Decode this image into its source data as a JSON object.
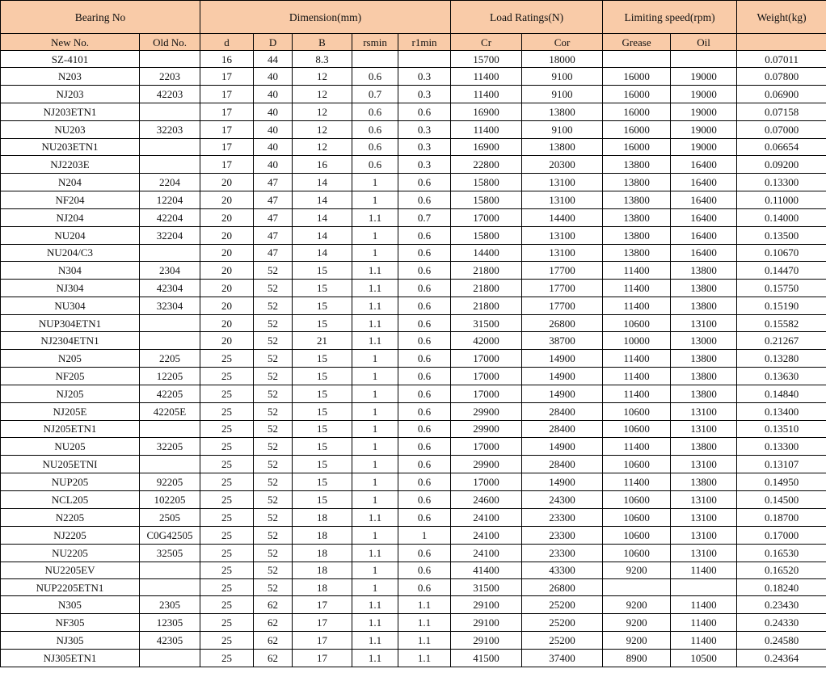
{
  "header": {
    "groups": [
      "Bearing No",
      "Dimension(mm)",
      "Load Ratings(N)",
      "Limiting speed(rpm)",
      "Weight(kg)"
    ],
    "columns": [
      "New No.",
      "Old No.",
      "d",
      "D",
      "B",
      "rsmin",
      "r1min",
      "Cr",
      "Cor",
      "Grease",
      "Oil",
      ""
    ]
  },
  "colors": {
    "header_bg": "#F9CBA8",
    "border": "#000000"
  },
  "rows": [
    [
      "SZ-4101",
      "",
      "16",
      "44",
      "8.3",
      "",
      "",
      "15700",
      "18000",
      "",
      "",
      "0.07011"
    ],
    [
      "N203",
      "2203",
      "17",
      "40",
      "12",
      "0.6",
      "0.3",
      "11400",
      "9100",
      "16000",
      "19000",
      "0.07800"
    ],
    [
      "NJ203",
      "42203",
      "17",
      "40",
      "12",
      "0.7",
      "0.3",
      "11400",
      "9100",
      "16000",
      "19000",
      "0.06900"
    ],
    [
      "NJ203ETN1",
      "",
      "17",
      "40",
      "12",
      "0.6",
      "0.6",
      "16900",
      "13800",
      "16000",
      "19000",
      "0.07158"
    ],
    [
      "NU203",
      "32203",
      "17",
      "40",
      "12",
      "0.6",
      "0.3",
      "11400",
      "9100",
      "16000",
      "19000",
      "0.07000"
    ],
    [
      "NU203ETN1",
      "",
      "17",
      "40",
      "12",
      "0.6",
      "0.3",
      "16900",
      "13800",
      "16000",
      "19000",
      "0.06654"
    ],
    [
      "NJ2203E",
      "",
      "17",
      "40",
      "16",
      "0.6",
      "0.3",
      "22800",
      "20300",
      "13800",
      "16400",
      "0.09200"
    ],
    [
      "N204",
      "2204",
      "20",
      "47",
      "14",
      "1",
      "0.6",
      "15800",
      "13100",
      "13800",
      "16400",
      "0.13300"
    ],
    [
      "NF204",
      "12204",
      "20",
      "47",
      "14",
      "1",
      "0.6",
      "15800",
      "13100",
      "13800",
      "16400",
      "0.11000"
    ],
    [
      "NJ204",
      "42204",
      "20",
      "47",
      "14",
      "1.1",
      "0.7",
      "17000",
      "14400",
      "13800",
      "16400",
      "0.14000"
    ],
    [
      "NU204",
      "32204",
      "20",
      "47",
      "14",
      "1",
      "0.6",
      "15800",
      "13100",
      "13800",
      "16400",
      "0.13500"
    ],
    [
      "NU204/C3",
      "",
      "20",
      "47",
      "14",
      "1",
      "0.6",
      "14400",
      "13100",
      "13800",
      "16400",
      "0.10670"
    ],
    [
      "N304",
      "2304",
      "20",
      "52",
      "15",
      "1.1",
      "0.6",
      "21800",
      "17700",
      "11400",
      "13800",
      "0.14470"
    ],
    [
      "NJ304",
      "42304",
      "20",
      "52",
      "15",
      "1.1",
      "0.6",
      "21800",
      "17700",
      "11400",
      "13800",
      "0.15750"
    ],
    [
      "NU304",
      "32304",
      "20",
      "52",
      "15",
      "1.1",
      "0.6",
      "21800",
      "17700",
      "11400",
      "13800",
      "0.15190"
    ],
    [
      "NUP304ETN1",
      "",
      "20",
      "52",
      "15",
      "1.1",
      "0.6",
      "31500",
      "26800",
      "10600",
      "13100",
      "0.15582"
    ],
    [
      "NJ2304ETN1",
      "",
      "20",
      "52",
      "21",
      "1.1",
      "0.6",
      "42000",
      "38700",
      "10000",
      "13000",
      "0.21267"
    ],
    [
      "N205",
      "2205",
      "25",
      "52",
      "15",
      "1",
      "0.6",
      "17000",
      "14900",
      "11400",
      "13800",
      "0.13280"
    ],
    [
      "NF205",
      "12205",
      "25",
      "52",
      "15",
      "1",
      "0.6",
      "17000",
      "14900",
      "11400",
      "13800",
      "0.13630"
    ],
    [
      "NJ205",
      "42205",
      "25",
      "52",
      "15",
      "1",
      "0.6",
      "17000",
      "14900",
      "11400",
      "13800",
      "0.14840"
    ],
    [
      "NJ205E",
      "42205E",
      "25",
      "52",
      "15",
      "1",
      "0.6",
      "29900",
      "28400",
      "10600",
      "13100",
      "0.13400"
    ],
    [
      "NJ205ETN1",
      "",
      "25",
      "52",
      "15",
      "1",
      "0.6",
      "29900",
      "28400",
      "10600",
      "13100",
      "0.13510"
    ],
    [
      "NU205",
      "32205",
      "25",
      "52",
      "15",
      "1",
      "0.6",
      "17000",
      "14900",
      "11400",
      "13800",
      "0.13300"
    ],
    [
      "NU205ETNI",
      "",
      "25",
      "52",
      "15",
      "1",
      "0.6",
      "29900",
      "28400",
      "10600",
      "13100",
      "0.13107"
    ],
    [
      "NUP205",
      "92205",
      "25",
      "52",
      "15",
      "1",
      "0.6",
      "17000",
      "14900",
      "11400",
      "13800",
      "0.14950"
    ],
    [
      "NCL205",
      "102205",
      "25",
      "52",
      "15",
      "1",
      "0.6",
      "24600",
      "24300",
      "10600",
      "13100",
      "0.14500"
    ],
    [
      "N2205",
      "2505",
      "25",
      "52",
      "18",
      "1.1",
      "0.6",
      "24100",
      "23300",
      "10600",
      "13100",
      "0.18700"
    ],
    [
      "NJ2205",
      "C0G42505",
      "25",
      "52",
      "18",
      "1",
      "1",
      "24100",
      "23300",
      "10600",
      "13100",
      "0.17000"
    ],
    [
      "NU2205",
      "32505",
      "25",
      "52",
      "18",
      "1.1",
      "0.6",
      "24100",
      "23300",
      "10600",
      "13100",
      "0.16530"
    ],
    [
      "NU2205EV",
      "",
      "25",
      "52",
      "18",
      "1",
      "0.6",
      "41400",
      "43300",
      "9200",
      "11400",
      "0.16520"
    ],
    [
      "NUP2205ETN1",
      "",
      "25",
      "52",
      "18",
      "1",
      "0.6",
      "31500",
      "26800",
      "",
      "",
      "0.18240"
    ],
    [
      "N305",
      "2305",
      "25",
      "62",
      "17",
      "1.1",
      "1.1",
      "29100",
      "25200",
      "9200",
      "11400",
      "0.23430"
    ],
    [
      "NF305",
      "12305",
      "25",
      "62",
      "17",
      "1.1",
      "1.1",
      "29100",
      "25200",
      "9200",
      "11400",
      "0.24330"
    ],
    [
      "NJ305",
      "42305",
      "25",
      "62",
      "17",
      "1.1",
      "1.1",
      "29100",
      "25200",
      "9200",
      "11400",
      "0.24580"
    ],
    [
      "NJ305ETN1",
      "",
      "25",
      "62",
      "17",
      "1.1",
      "1.1",
      "41500",
      "37400",
      "8900",
      "10500",
      "0.24364"
    ]
  ]
}
